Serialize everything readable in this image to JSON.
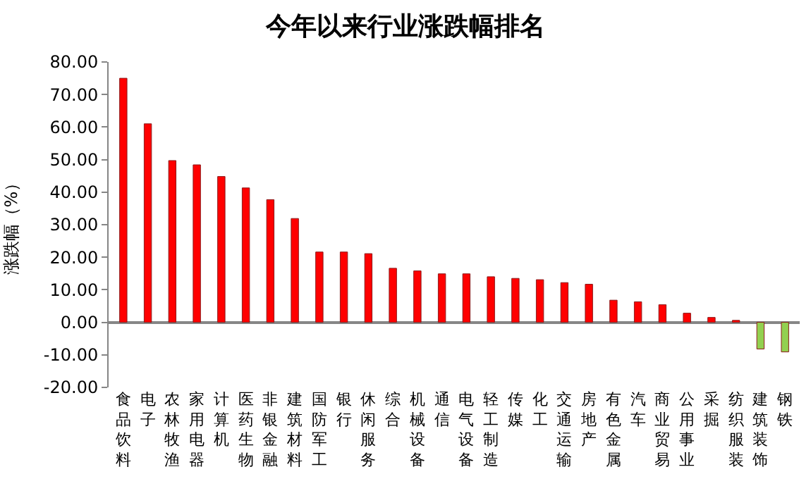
{
  "chart_data": {
    "type": "bar",
    "title": "今年以来行业涨跌幅排名",
    "ylabel": "涨跌幅（%）",
    "categories": [
      "食品饮料",
      "电子",
      "农林牧渔",
      "家用电器",
      "计算机",
      "医药生物",
      "非银金融",
      "建筑材料",
      "国防军工",
      "银行",
      "休闲服务",
      "综合",
      "机械设备",
      "通信",
      "电气设备",
      "轻工制造",
      "传媒",
      "化工",
      "交通运输",
      "房地产",
      "有色金属",
      "汽车",
      "商业贸易",
      "公用事业",
      "采掘",
      "纺织服装",
      "建筑装饰",
      "钢铁"
    ],
    "values": [
      75.0,
      61.0,
      49.7,
      48.4,
      44.8,
      41.3,
      37.7,
      31.9,
      21.6,
      21.6,
      21.1,
      16.6,
      15.8,
      14.9,
      14.9,
      14.0,
      13.5,
      13.1,
      12.2,
      11.7,
      6.8,
      6.3,
      5.4,
      2.8,
      1.5,
      0.6,
      -8.2,
      -9.1
    ],
    "colors": [
      "#ff0000",
      "#ff0000",
      "#ff0000",
      "#ff0000",
      "#ff0000",
      "#ff0000",
      "#ff0000",
      "#ff0000",
      "#ff0000",
      "#ff0000",
      "#ff0000",
      "#ff0000",
      "#ff0000",
      "#ff0000",
      "#ff0000",
      "#ff0000",
      "#ff0000",
      "#ff0000",
      "#ff0000",
      "#ff0000",
      "#ff0000",
      "#ff0000",
      "#ff0000",
      "#ff0000",
      "#ff0000",
      "#ff0000",
      "#92d050",
      "#92d050"
    ],
    "ylim": [
      -20,
      80
    ],
    "yticks": [
      {
        "value": -20,
        "label": "-20.00"
      },
      {
        "value": -10,
        "label": "-10.00"
      },
      {
        "value": 0,
        "label": "0.00"
      },
      {
        "value": 10,
        "label": "10.00"
      },
      {
        "value": 20,
        "label": "20.00"
      },
      {
        "value": 30,
        "label": "30.00"
      },
      {
        "value": 40,
        "label": "40.00"
      },
      {
        "value": 50,
        "label": "50.00"
      },
      {
        "value": 60,
        "label": "60.00"
      },
      {
        "value": 70,
        "label": "70.00"
      },
      {
        "value": 80,
        "label": "80.00"
      }
    ],
    "legend": false
  }
}
